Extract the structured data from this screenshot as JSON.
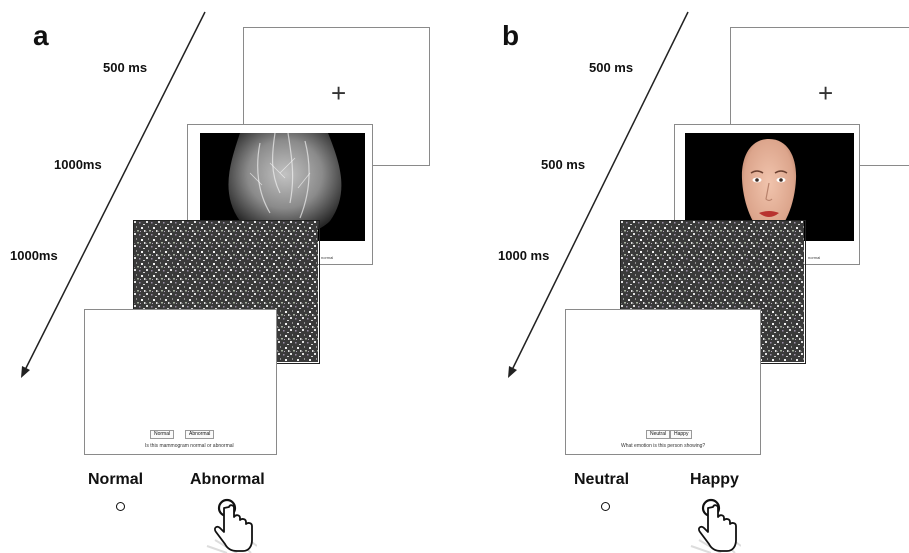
{
  "panel_a": {
    "letter": "a",
    "timings": [
      "500 ms",
      "1000ms",
      "1000ms"
    ],
    "fixation": "+",
    "image_caption": "normal",
    "buttons": [
      "Normal",
      "Abnormal"
    ],
    "question": "Is this mammogram normal or abnormal",
    "response_labels": [
      "Normal",
      "Abnormal"
    ],
    "icons": [
      "circle-icon",
      "hand-pointer-icon"
    ]
  },
  "panel_b": {
    "letter": "b",
    "timings": [
      "500 ms",
      "500 ms",
      "1000 ms"
    ],
    "fixation": "+",
    "image_caption": "normal",
    "buttons": [
      "Neutral",
      "Happy"
    ],
    "question": "What emotion is this person showing?",
    "response_labels": [
      "Neutral",
      "Happy"
    ],
    "icons": [
      "circle-icon",
      "hand-pointer-icon"
    ]
  },
  "colors": {
    "frame_border": "#8a8a8a",
    "image_bg": "#000000",
    "lip": "#b8322f",
    "skin": "#e7b49d"
  }
}
